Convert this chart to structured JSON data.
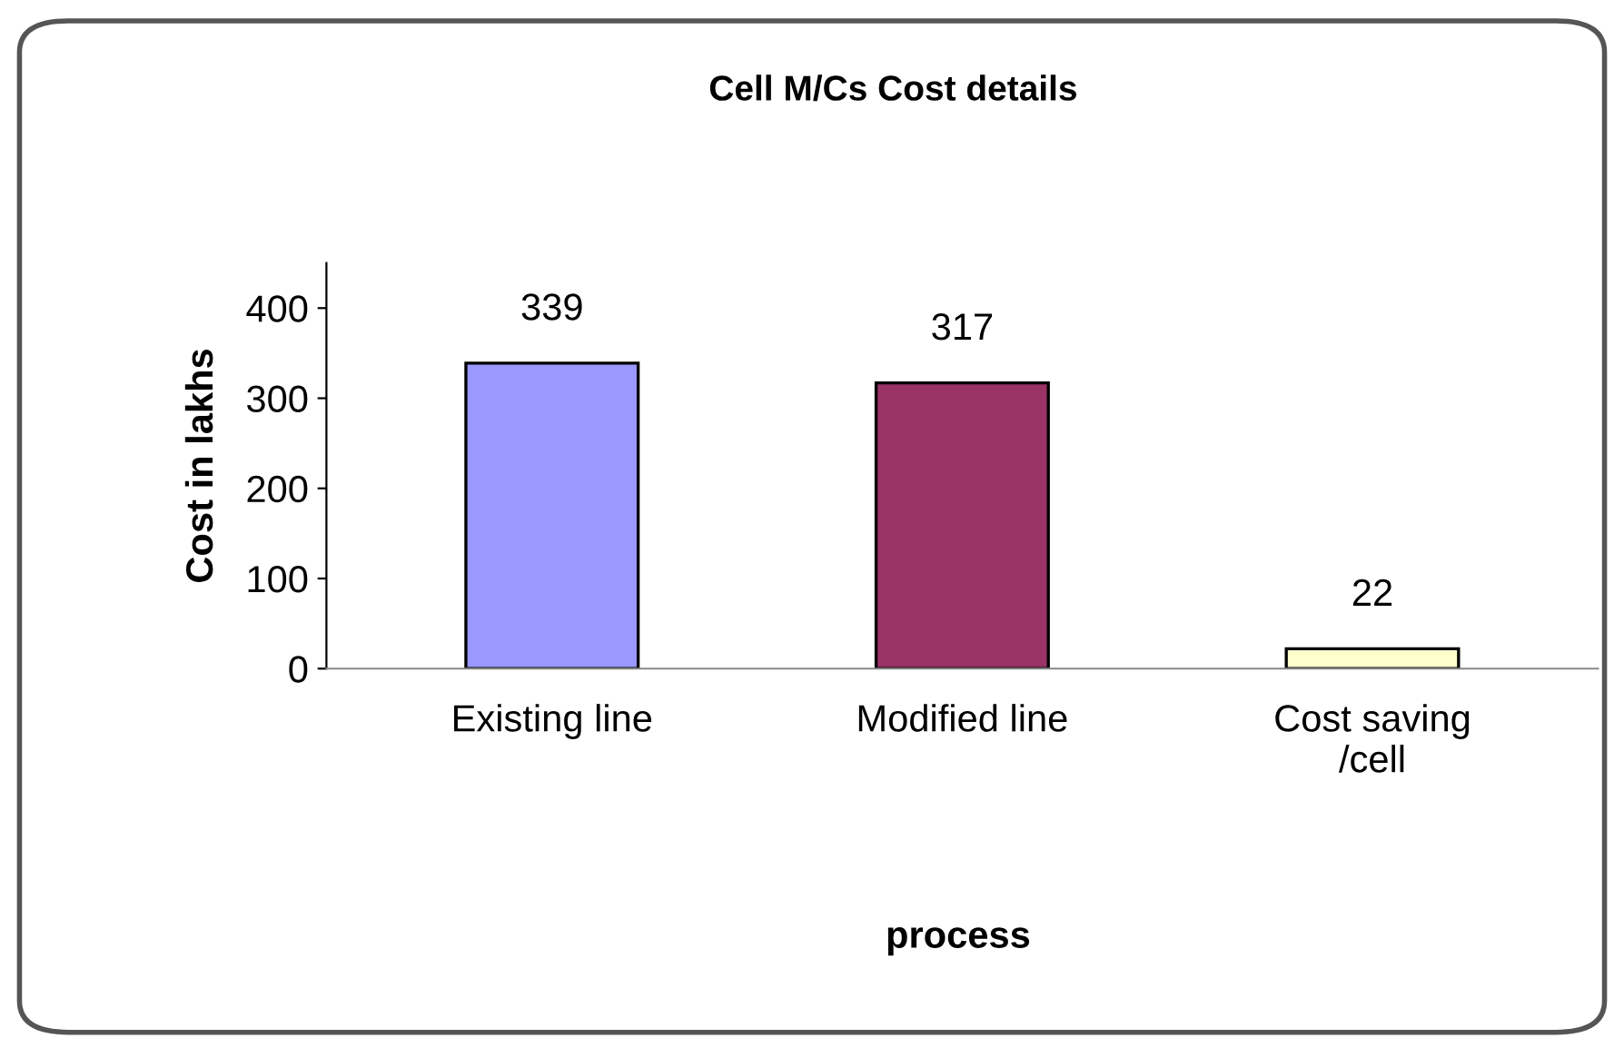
{
  "chart_data": {
    "type": "bar",
    "title": "Cell M/Cs Cost details",
    "xlabel": "process",
    "ylabel": "Cost in lakhs",
    "categories": [
      "Existing line",
      "Modified line",
      "Cost saving\n/cell"
    ],
    "values": [
      339,
      317,
      22
    ],
    "colors": [
      "#9999ff",
      "#993366",
      "#ffffcc"
    ],
    "ylim": [
      0,
      450
    ],
    "yticks": [
      0,
      100,
      200,
      300,
      400
    ],
    "data_labels": true,
    "grid": false,
    "legend": false
  }
}
